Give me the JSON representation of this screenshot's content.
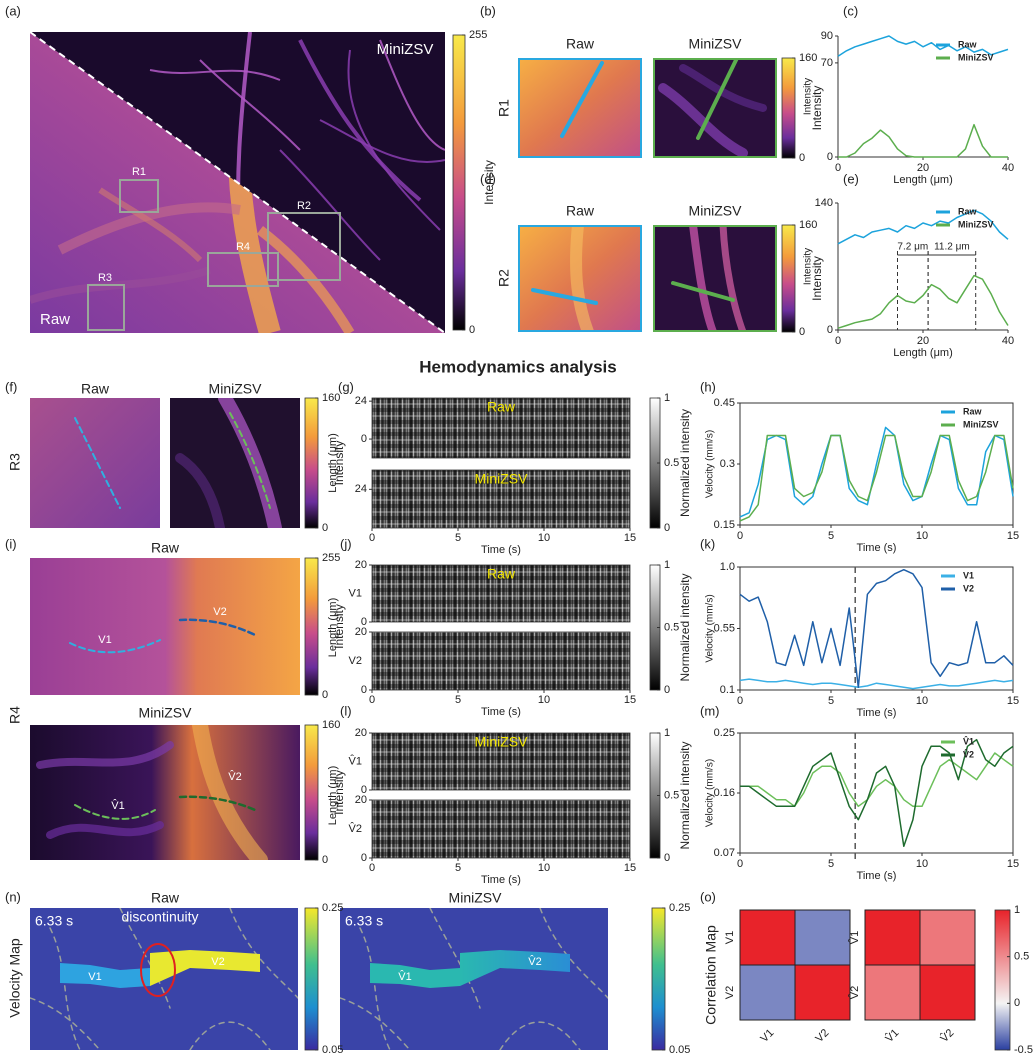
{
  "panel_labels": [
    "(a)",
    "(b)",
    "(c)",
    "(d)",
    "(e)",
    "(f)",
    "(g)",
    "(h)",
    "(i)",
    "(j)",
    "(k)",
    "(l)",
    "(m)",
    "(n)",
    "(o)"
  ],
  "section_title": "Hemodynamics analysis",
  "a": {
    "raw": "Raw",
    "minizsv": "MiniZSV",
    "rois": [
      "R1",
      "R2",
      "R3",
      "R4"
    ]
  },
  "b": {
    "row": "R1",
    "titles": [
      "Raw",
      "MiniZSV"
    ]
  },
  "d": {
    "row": "R2",
    "titles": [
      "Raw",
      "MiniZSV"
    ]
  },
  "f": {
    "row": "R3",
    "titles": [
      "Raw",
      "MiniZSV"
    ]
  },
  "i": {
    "row": "R4",
    "titles": [
      "Raw",
      "MiniZSV"
    ],
    "vessels": [
      "V1",
      "V2",
      "V̂1",
      "V̂2"
    ]
  },
  "n": {
    "row": "Velocity Map",
    "titles": [
      "Raw",
      "MiniZSV"
    ],
    "time": "6.33 s",
    "note": "discontinuity",
    "vessels": [
      "V1",
      "V2",
      "V̂1",
      "V̂2"
    ]
  },
  "o": {
    "row": "Correlation Map"
  },
  "colorbars": [
    {
      "lim": [
        0,
        255
      ],
      "ticks": [
        255,
        0
      ],
      "label": "Intensity"
    },
    {
      "lim": [
        0,
        160
      ],
      "ticks": [
        160,
        0
      ],
      "label": "Intensity"
    },
    {
      "lim": [
        0,
        160
      ],
      "ticks": [
        160,
        0
      ],
      "label": "Intensity"
    },
    {
      "lim": [
        0,
        160
      ],
      "ticks": [
        160,
        0
      ],
      "label": "Intensity"
    },
    {
      "lim": [
        0,
        255
      ],
      "ticks": [
        255,
        0
      ],
      "label": "Intensity"
    },
    {
      "lim": [
        0,
        160
      ],
      "ticks": [
        160,
        0
      ],
      "label": "Intensity"
    },
    {
      "lim": [
        0,
        1
      ],
      "ticks": [
        1,
        0.5,
        0
      ],
      "label": "Normalized intensity"
    },
    {
      "lim": [
        0,
        1
      ],
      "ticks": [
        1,
        0.5,
        0
      ],
      "label": "Normalized intensity"
    },
    {
      "lim": [
        0,
        1
      ],
      "ticks": [
        1,
        0.5,
        0
      ],
      "label": "Normalized intensity"
    },
    {
      "lim": [
        0.05,
        0.25
      ],
      "ticks": [
        0.25,
        0.05
      ]
    },
    {
      "lim": [
        0.05,
        0.25
      ],
      "ticks": [
        0.25,
        0.05
      ]
    },
    {
      "lim": [
        -0.5,
        1
      ],
      "ticks": [
        1,
        0.5,
        0,
        -0.5
      ]
    }
  ],
  "kymographs": [
    {
      "xlabel": "Time (s)",
      "ylabel": "Length (μm)",
      "xlim": [
        0,
        15
      ],
      "xticks": [
        0,
        5,
        10,
        15
      ],
      "rows": [
        {
          "ylim": [
            -12,
            26
          ],
          "yticks": [
            24,
            0
          ],
          "overlay": "Raw"
        },
        {
          "ylim": [
            0,
            36
          ],
          "yticks": [
            24
          ],
          "overlay": "MiniZSV"
        }
      ]
    },
    {
      "xlabel": "Time (s)",
      "ylabel": "Length (μm)",
      "xlim": [
        0,
        15
      ],
      "xticks": [
        0,
        5,
        10,
        15
      ],
      "rows": [
        {
          "ylim": [
            0,
            20
          ],
          "yticks": [
            20,
            0
          ],
          "overlay": "Raw",
          "side": "V1"
        },
        {
          "ylim": [
            0,
            20
          ],
          "yticks": [
            20,
            0
          ],
          "side": "V2"
        }
      ]
    },
    {
      "xlabel": "Time (s)",
      "ylabel": "Length (μm)",
      "xlim": [
        0,
        15
      ],
      "xticks": [
        0,
        5,
        10,
        15
      ],
      "rows": [
        {
          "ylim": [
            0,
            20
          ],
          "yticks": [
            20,
            0
          ],
          "overlay": "MiniZSV",
          "side": "V̂1"
        },
        {
          "ylim": [
            0,
            20
          ],
          "yticks": [
            20,
            0
          ],
          "side": "V̂2"
        }
      ]
    }
  ],
  "chart_data": [
    {
      "type": "line",
      "xlabel": "Length (μm)",
      "ylabel": "Intensity",
      "xlim": [
        0,
        40
      ],
      "xticks": [
        0,
        20,
        40
      ],
      "ylim": [
        0,
        90
      ],
      "yticks": [
        0,
        70,
        90
      ],
      "legend": "upper right",
      "box": false,
      "x": [
        0,
        2,
        4,
        6,
        8,
        10,
        12,
        14,
        16,
        18,
        20,
        22,
        24,
        26,
        28,
        30,
        32,
        34,
        36,
        38,
        40
      ],
      "series": [
        {
          "name": "Raw",
          "color": "#1ca3dc",
          "values": [
            75,
            79,
            82,
            84,
            86,
            88,
            90,
            86,
            84,
            86,
            82,
            85,
            80,
            83,
            79,
            82,
            78,
            80,
            76,
            78,
            80
          ]
        },
        {
          "name": "MiniZSV",
          "color": "#5cae4e",
          "values": [
            0,
            0,
            3,
            10,
            14,
            20,
            15,
            6,
            1,
            0,
            0,
            0,
            0,
            0,
            0,
            6,
            24,
            8,
            0,
            0,
            0
          ]
        }
      ]
    },
    {
      "type": "line",
      "xlabel": "Length (μm)",
      "ylabel": "Intensity",
      "xlim": [
        0,
        40
      ],
      "xticks": [
        0,
        20,
        40
      ],
      "ylim": [
        0,
        140
      ],
      "yticks": [
        0,
        140
      ],
      "legend": "upper right",
      "box": false,
      "x": [
        0,
        2,
        4,
        6,
        8,
        10,
        12,
        14,
        16,
        18,
        20,
        22,
        24,
        26,
        28,
        30,
        32,
        34,
        36,
        38,
        40
      ],
      "series": [
        {
          "name": "Raw",
          "color": "#1ca3dc",
          "values": [
            95,
            100,
            105,
            102,
            108,
            110,
            112,
            108,
            115,
            112,
            118,
            115,
            120,
            118,
            124,
            128,
            132,
            128,
            120,
            108,
            100
          ]
        },
        {
          "name": "MiniZSV",
          "color": "#5cae4e",
          "values": [
            2,
            5,
            8,
            10,
            12,
            18,
            30,
            38,
            32,
            30,
            38,
            50,
            45,
            35,
            30,
            45,
            60,
            56,
            40,
            20,
            5
          ]
        }
      ],
      "annotations": [
        {
          "label": "7.2 μm",
          "x": [
            14,
            21.2
          ]
        },
        {
          "label": "11.2 μm",
          "x": [
            21.2,
            32.4
          ]
        }
      ]
    },
    {
      "type": "line",
      "xlabel": "Time (s)",
      "ylabel": "Velocity (mm/s)",
      "xlim": [
        0,
        15
      ],
      "xticks": [
        0,
        5,
        10,
        15
      ],
      "ylim": [
        0.15,
        0.45
      ],
      "yticks": [
        0.15,
        0.3,
        0.45
      ],
      "legend": "upper right",
      "box": true,
      "x": [
        0,
        0.5,
        1,
        1.5,
        2,
        2.5,
        3,
        3.5,
        4,
        4.5,
        5,
        5.5,
        6,
        6.5,
        7,
        7.5,
        8,
        8.5,
        9,
        9.5,
        10,
        10.5,
        11,
        11.5,
        12,
        12.5,
        13,
        13.5,
        14,
        14.5,
        15
      ],
      "series": [
        {
          "name": "Raw",
          "color": "#1ca3dc",
          "values": [
            0.17,
            0.18,
            0.25,
            0.36,
            0.37,
            0.36,
            0.22,
            0.2,
            0.22,
            0.3,
            0.37,
            0.37,
            0.24,
            0.21,
            0.2,
            0.3,
            0.39,
            0.37,
            0.25,
            0.21,
            0.22,
            0.3,
            0.37,
            0.36,
            0.24,
            0.2,
            0.2,
            0.33,
            0.37,
            0.36,
            0.22
          ]
        },
        {
          "name": "MiniZSV",
          "color": "#5cae4e",
          "values": [
            0.16,
            0.17,
            0.2,
            0.37,
            0.37,
            0.37,
            0.24,
            0.22,
            0.23,
            0.28,
            0.37,
            0.37,
            0.26,
            0.22,
            0.21,
            0.28,
            0.37,
            0.37,
            0.27,
            0.22,
            0.22,
            0.28,
            0.37,
            0.37,
            0.26,
            0.21,
            0.22,
            0.28,
            0.37,
            0.37,
            0.24
          ]
        }
      ]
    },
    {
      "type": "line",
      "xlabel": "Time (s)",
      "ylabel": "Velocity (mm/s)",
      "xlim": [
        0,
        15
      ],
      "xticks": [
        0,
        5,
        10,
        15
      ],
      "ylim": [
        0.1,
        1
      ],
      "yticks": [
        0.1,
        0.55,
        {
          "value": 1,
          "label": "1.0"
        }
      ],
      "legend": "upper right",
      "box": true,
      "vline": 6.33,
      "x": [
        0,
        0.5,
        1,
        1.5,
        2,
        2.5,
        3,
        3.5,
        4,
        4.5,
        5,
        5.5,
        6,
        6.5,
        7,
        7.5,
        8,
        8.5,
        9,
        9.5,
        10,
        10.5,
        11,
        11.5,
        12,
        12.5,
        13,
        13.5,
        14,
        14.5,
        15
      ],
      "series": [
        {
          "name": "V1",
          "color": "#3bb0e6",
          "values": [
            0.17,
            0.18,
            0.17,
            0.16,
            0.16,
            0.17,
            0.16,
            0.15,
            0.14,
            0.15,
            0.15,
            0.14,
            0.13,
            0.12,
            0.13,
            0.15,
            0.14,
            0.13,
            0.12,
            0.11,
            0.12,
            0.13,
            0.14,
            0.13,
            0.13,
            0.14,
            0.15,
            0.16,
            0.17,
            0.16,
            0.17
          ]
        },
        {
          "name": "V2",
          "color": "#1f5fa8",
          "values": [
            0.8,
            0.75,
            0.78,
            0.6,
            0.3,
            0.28,
            0.5,
            0.28,
            0.6,
            0.3,
            0.55,
            0.28,
            0.7,
            0.12,
            0.8,
            0.88,
            0.9,
            0.95,
            0.98,
            0.95,
            0.85,
            0.3,
            0.2,
            0.3,
            0.28,
            0.3,
            0.6,
            0.3,
            0.3,
            0.35,
            0.28
          ]
        }
      ]
    },
    {
      "type": "line",
      "xlabel": "Time (s)",
      "ylabel": "Velocity (mm/s)",
      "xlim": [
        0,
        15
      ],
      "xticks": [
        0,
        5,
        10,
        15
      ],
      "ylim": [
        0.07,
        0.25
      ],
      "yticks": [
        0.07,
        0.16,
        0.25
      ],
      "legend": "upper right",
      "box": true,
      "vline": 6.33,
      "x": [
        0,
        0.5,
        1,
        1.5,
        2,
        2.5,
        3,
        3.5,
        4,
        4.5,
        5,
        5.5,
        6,
        6.5,
        7,
        7.5,
        8,
        8.5,
        9,
        9.5,
        10,
        10.5,
        11,
        11.5,
        12,
        12.5,
        13,
        13.5,
        14,
        14.5,
        15
      ],
      "series": [
        {
          "name": "V̂1",
          "color": "#6cbf5a",
          "values": [
            0.17,
            0.17,
            0.17,
            0.16,
            0.15,
            0.15,
            0.14,
            0.16,
            0.19,
            0.2,
            0.2,
            0.19,
            0.16,
            0.14,
            0.15,
            0.17,
            0.18,
            0.17,
            0.15,
            0.14,
            0.14,
            0.17,
            0.2,
            0.21,
            0.2,
            0.19,
            0.18,
            0.2,
            0.22,
            0.21,
            0.2
          ]
        },
        {
          "name": "V̂2",
          "color": "#1e6b2e",
          "values": [
            0.17,
            0.17,
            0.16,
            0.15,
            0.14,
            0.14,
            0.14,
            0.17,
            0.2,
            0.21,
            0.22,
            0.18,
            0.14,
            0.12,
            0.15,
            0.19,
            0.2,
            0.17,
            0.08,
            0.12,
            0.2,
            0.23,
            0.23,
            0.22,
            0.18,
            0.23,
            0.24,
            0.21,
            0.2,
            0.22,
            0.23
          ]
        }
      ]
    },
    {
      "type": "heatmap",
      "rows": [
        "V1",
        "V2"
      ],
      "cols": [
        "V1",
        "V2"
      ],
      "values": [
        [
          1,
          -0.3
        ],
        [
          -0.3,
          1
        ]
      ]
    },
    {
      "type": "heatmap",
      "rows": [
        "V̂1",
        "V̂2"
      ],
      "cols": [
        "V̂1",
        "V̂2"
      ],
      "values": [
        [
          1,
          0.6
        ],
        [
          0.6,
          1
        ]
      ]
    }
  ]
}
